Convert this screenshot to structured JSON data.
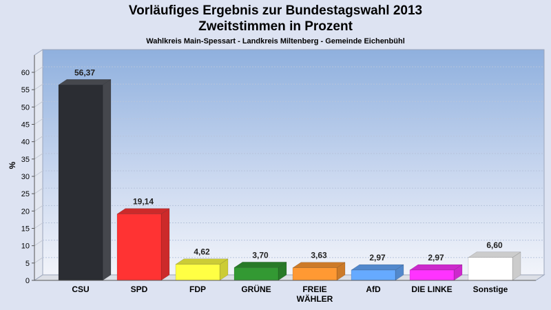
{
  "title_line1": "Vorläufiges Ergebnis zur Bundestagswahl 2013",
  "title_line2": "Zweitstimmen in Prozent",
  "subtitle": "Wahlkreis Main-Spessart - Landkreis Miltenberg - Gemeinde Eichenbühl",
  "chart_data": {
    "type": "bar",
    "title": "Vorläufiges Ergebnis zur Bundestagswahl 2013 Zweitstimmen in Prozent",
    "subtitle": "Wahlkreis Main-Spessart - Landkreis Miltenberg - Gemeinde Eichenbühl",
    "xlabel": "",
    "ylabel": "%",
    "ylim": [
      0,
      65
    ],
    "yticks": [
      0,
      5,
      10,
      15,
      20,
      25,
      30,
      35,
      40,
      45,
      50,
      55,
      60
    ],
    "grid": true,
    "categories": [
      "CSU",
      "SPD",
      "FDP",
      "GRÜNE",
      "FREIE WÄHLER",
      "AfD",
      "DIE LINKE",
      "Sonstige"
    ],
    "category_lines": [
      [
        "CSU"
      ],
      [
        "SPD"
      ],
      [
        "FDP"
      ],
      [
        "GRÜNE"
      ],
      [
        "FREIE",
        "WÄHLER"
      ],
      [
        "AfD"
      ],
      [
        "DIE LINKE"
      ],
      [
        "Sonstige"
      ]
    ],
    "values": [
      56.37,
      19.14,
      4.62,
      3.7,
      3.63,
      2.97,
      2.97,
      6.6
    ],
    "value_labels": [
      "56,37",
      "19,14",
      "4,62",
      "3,70",
      "3,63",
      "2,97",
      "2,97",
      "6,60"
    ],
    "colors": [
      "#2b2d33",
      "#ff3333",
      "#ffff44",
      "#339933",
      "#ff9933",
      "#66aaff",
      "#ff33ff",
      "#ffffff"
    ],
    "side_colors": [
      "#45474d",
      "#cc2a2a",
      "#cccc36",
      "#287a28",
      "#cc7a28",
      "#5288cc",
      "#cc29cc",
      "#cccccc"
    ]
  }
}
